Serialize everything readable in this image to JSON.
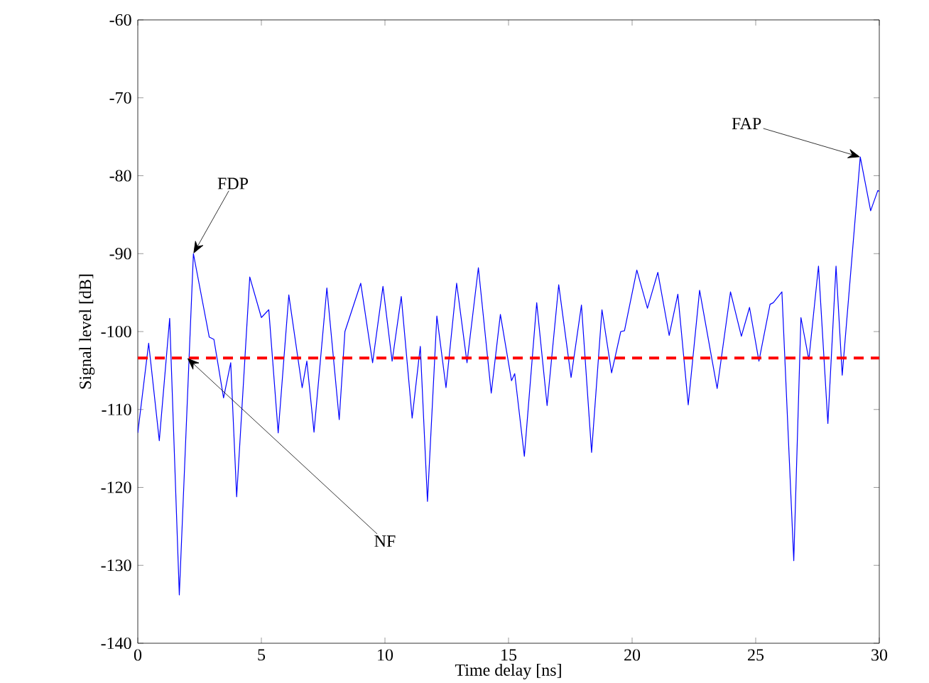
{
  "chart_data": {
    "type": "line",
    "xlabel": "Time delay [ns]",
    "ylabel": "Signal level [dB]",
    "xlim": [
      0,
      30
    ],
    "ylim": [
      -140,
      -60
    ],
    "xticks": [
      0,
      5,
      10,
      15,
      20,
      25,
      30
    ],
    "yticks": [
      -140,
      -130,
      -120,
      -110,
      -100,
      -90,
      -80,
      -70,
      -60
    ],
    "grid": false,
    "marker": "none",
    "line_style": "solid",
    "x": [
      0,
      0.44,
      0.87,
      1.29,
      1.68,
      2.25,
      2.89,
      3.08,
      3.47,
      3.76,
      4.0,
      4.53,
      5.0,
      5.3,
      5.68,
      6.11,
      6.65,
      6.84,
      7.13,
      7.65,
      8.15,
      8.38,
      9.02,
      9.5,
      9.92,
      10.29,
      10.66,
      11.1,
      11.43,
      11.72,
      12.1,
      12.47,
      12.9,
      13.32,
      13.78,
      14.3,
      14.67,
      15.12,
      15.25,
      15.64,
      16.14,
      16.56,
      17.03,
      17.53,
      17.95,
      18.36,
      18.78,
      19.17,
      19.54,
      19.69,
      20.19,
      20.62,
      21.04,
      21.5,
      21.85,
      22.27,
      22.73,
      23.44,
      23.98,
      24.42,
      24.75,
      25.13,
      25.58,
      25.71,
      26.06,
      26.54,
      26.83,
      27.15,
      27.54,
      27.92,
      28.25,
      28.5,
      29.23,
      29.65,
      29.94,
      30
    ],
    "series": [
      {
        "color": "#0000ff",
        "values": [
          -113,
          -101.5,
          -114,
          -98.3,
          -133.8,
          -90,
          -100.7,
          -101,
          -108.5,
          -104,
          -121.2,
          -93,
          -98.2,
          -97.2,
          -113,
          -95.3,
          -107.2,
          -103.8,
          -112.9,
          -94.4,
          -111.3,
          -100,
          -93.8,
          -104,
          -94.2,
          -103.8,
          -95.5,
          -111.1,
          -101.9,
          -121.8,
          -98,
          -107.2,
          -93.8,
          -104,
          -91.8,
          -107.9,
          -97.8,
          -106.3,
          -105.4,
          -116,
          -96.3,
          -109.5,
          -94,
          -105.9,
          -96.6,
          -115.5,
          -97.2,
          -105.3,
          -100,
          -99.9,
          -92.1,
          -97,
          -92.4,
          -100.5,
          -95.2,
          -109.4,
          -94.7,
          -107.3,
          -94.9,
          -100.6,
          -96.9,
          -103.8,
          -96.5,
          -96.3,
          -94.9,
          -129.4,
          -98.2,
          -103.6,
          -91.6,
          -111.8,
          -91.6,
          -105.6,
          -77.6,
          -84.5,
          -81.9,
          -82
        ]
      }
    ],
    "ref_lines": [
      {
        "axis": "y",
        "value": -103.4,
        "color": "#ff0000",
        "line_style": "dashed"
      }
    ],
    "annotations": [
      {
        "text": "FDP",
        "x": 2.25,
        "y": -90
      },
      {
        "text": "NF",
        "x": 2.0,
        "y": -103.4
      },
      {
        "text": "FAP",
        "x": 29.23,
        "y": -77.6
      }
    ]
  }
}
